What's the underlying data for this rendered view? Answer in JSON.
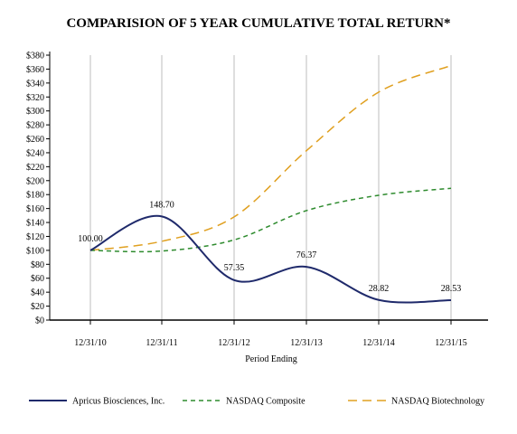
{
  "chart_data": {
    "type": "line",
    "title": "COMPARISION OF 5 YEAR CUMULATIVE TOTAL RETURN*",
    "xlabel": "Period Ending",
    "ylabel": "",
    "categories": [
      "12/31/10",
      "12/31/11",
      "12/31/12",
      "12/31/13",
      "12/31/14",
      "12/31/15"
    ],
    "ylim": [
      0,
      380
    ],
    "ytick_step": 20,
    "ytick_prefix": "$",
    "grid": "vertical",
    "legend": "bottom",
    "series": [
      {
        "name": "Apricus Biosciences, Inc.",
        "values": [
          100.0,
          148.7,
          57.35,
          76.37,
          28.82,
          28.53
        ],
        "labels": [
          "100.00",
          "148.70",
          "57.35",
          "76.37",
          "28.82",
          "28.53"
        ],
        "color": "#1f2a6b",
        "dash": "solid"
      },
      {
        "name": "NASDAQ Composite",
        "values": [
          100,
          99,
          115,
          157,
          179,
          189
        ],
        "color": "#2e8b2e",
        "dash": "short-dash"
      },
      {
        "name": "NASDAQ Biotechnology",
        "values": [
          100,
          113,
          148,
          243,
          327,
          365
        ],
        "color": "#e0a020",
        "dash": "long-dash"
      }
    ]
  }
}
